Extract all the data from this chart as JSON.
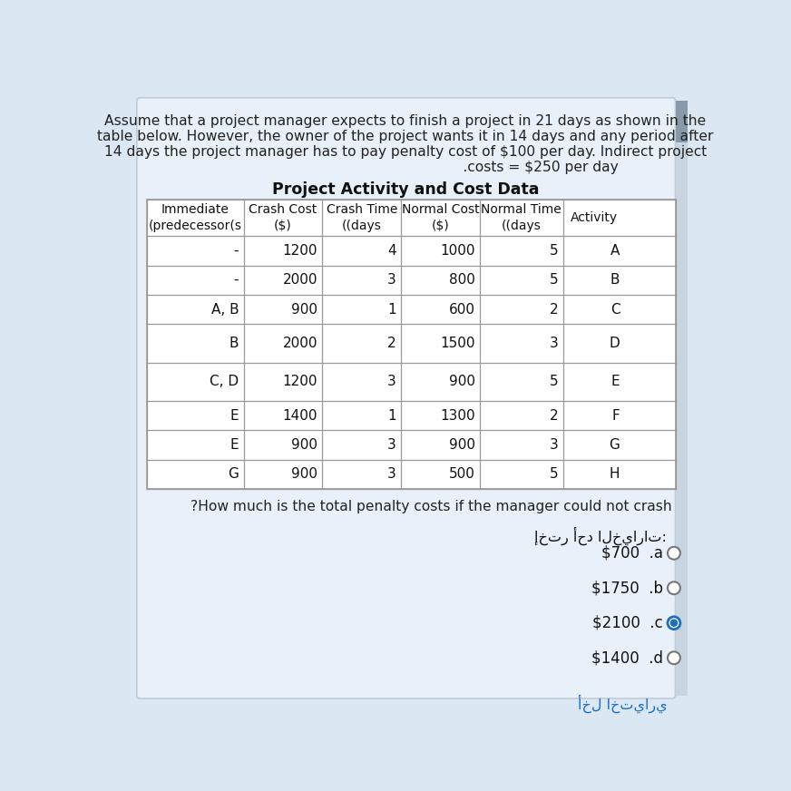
{
  "paragraph_lines": [
    "Assume that a project manager expects to finish a project in 21 days as shown in the",
    "table below. However, the owner of the project wants it in 14 days and any period after",
    "14 days the project manager has to pay penalty cost of $100 per day. Indirect project",
    "                                                             .costs = $250 per day"
  ],
  "table_title": "Project Activity and Cost Data",
  "headers": [
    "Immediate\n(predecessor(s",
    "Crash Cost\n($)",
    "Crash Time\n((days",
    "Normal Cost\n($)",
    "Normal Time\n((days",
    "Activity"
  ],
  "rows": [
    [
      "-",
      "1200",
      "4",
      "1000",
      "5",
      "A"
    ],
    [
      "-",
      "2000",
      "3",
      "800",
      "5",
      "B"
    ],
    [
      "A, B",
      "900",
      "1",
      "600",
      "2",
      "C"
    ],
    [
      "B",
      "2000",
      "2",
      "1500",
      "3",
      "D"
    ],
    [
      "C, D",
      "1200",
      "3",
      "900",
      "5",
      "E"
    ],
    [
      "E",
      "1400",
      "1",
      "1300",
      "2",
      "F"
    ],
    [
      "E",
      "900",
      "3",
      "900",
      "3",
      "G"
    ],
    [
      "G",
      "900",
      "3",
      "500",
      "5",
      "H"
    ]
  ],
  "question": "?How much is the total penalty costs if the manager could not crash",
  "choice_header": "إختر أحد الخيارات:",
  "choices": [
    {
      "label": ".a",
      "value": "$700",
      "selected": false
    },
    {
      "label": ".b",
      "value": "$1750",
      "selected": false
    },
    {
      "label": ".c",
      "value": "$2100",
      "selected": true
    },
    {
      "label": ".d",
      "value": "$1400",
      "selected": false
    }
  ],
  "footer_link": "أخل اختياري",
  "bg_color": "#dbe8f4",
  "card_color": "#e8f1f9",
  "table_white": "#ffffff",
  "selected_color": "#1a6fc4",
  "link_color": "#1a6fc4",
  "text_color": "#222222",
  "border_color": "#999999"
}
